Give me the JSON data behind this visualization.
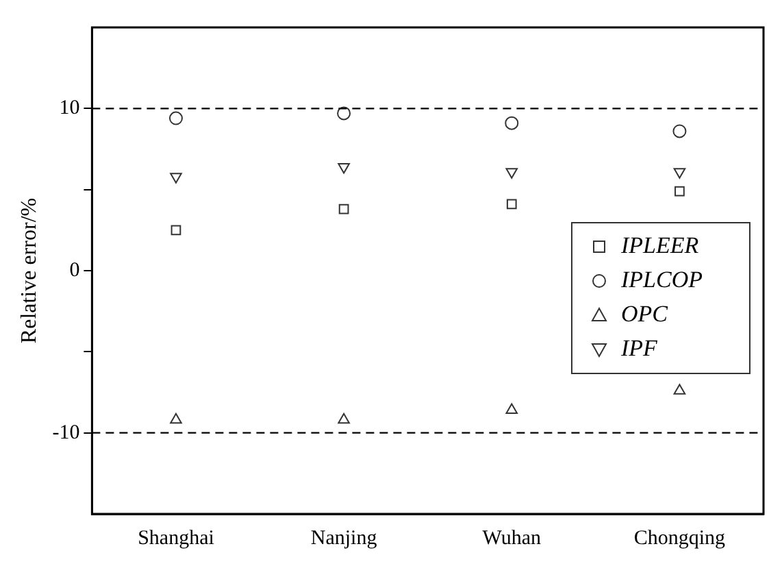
{
  "chart_data": {
    "type": "scatter",
    "ylabel": "Relative error/%",
    "categories": [
      "Shanghai",
      "Nanjing",
      "Wuhan",
      "Chongqing"
    ],
    "series": [
      {
        "name": "IPLEER",
        "color": "#333333",
        "marker": "square",
        "values": [
          2.5,
          3.8,
          4.1,
          4.9
        ]
      },
      {
        "name": "IPLCOP",
        "color": "#333333",
        "marker": "circle",
        "values": [
          9.4,
          9.7,
          9.1,
          8.6
        ]
      },
      {
        "name": "OPC",
        "color": "#333333",
        "marker": "triangle",
        "values": [
          -9.2,
          -9.2,
          -8.6,
          -7.4
        ]
      },
      {
        "name": "IPF",
        "color": "#333333",
        "marker": "triangle_down",
        "values": [
          5.8,
          6.4,
          6.1,
          6.1
        ]
      }
    ],
    "ylim": [
      -15,
      15
    ],
    "yticks": [
      -10,
      {
        "value": -5,
        "label": null
      },
      0,
      {
        "value": 5,
        "label": null
      },
      10
    ],
    "ref_lines": [
      {
        "axis": "y",
        "value": 10,
        "line_style": "dashed",
        "color": "#000000"
      },
      {
        "axis": "y",
        "value": -10,
        "line_style": "dashed",
        "color": "#000000"
      }
    ],
    "grid": false,
    "legend": "right"
  }
}
